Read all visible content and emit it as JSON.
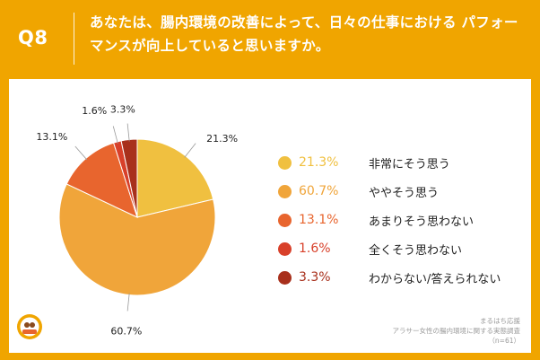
{
  "header": {
    "question_number": "Q8",
    "question_text": "あなたは、腸内環境の改善によって、日々の仕事における パフォーマンスが向上していると思いますか。"
  },
  "chart_data": {
    "type": "pie",
    "slices": [
      {
        "label": "非常にそう思う",
        "value": 21.3,
        "display": "21.3%",
        "color": "#f0c040"
      },
      {
        "label": "ややそう思う",
        "value": 60.7,
        "display": "60.7%",
        "color": "#f0a53a"
      },
      {
        "label": "あまりそう思わない",
        "value": 13.1,
        "display": "13.1%",
        "color": "#e8652e"
      },
      {
        "label": "全くそう思わない",
        "value": 1.6,
        "display": "1.6%",
        "color": "#d8402a"
      },
      {
        "label": "わからない/答えられない",
        "value": 3.3,
        "display": "3.3%",
        "color": "#a8301c"
      }
    ],
    "start": "12 o'clock",
    "direction": "clockwise",
    "legend_position": "right"
  },
  "source": {
    "line1": "まるはち応援",
    "line2": "アラサー女性の腸内環境に関する実態調査",
    "line3": "（n=61）"
  },
  "logo": {
    "name": "maruhachi-logo"
  }
}
